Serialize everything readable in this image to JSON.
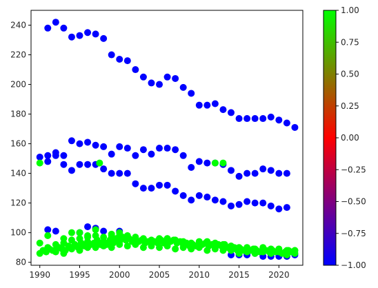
{
  "chart_data": {
    "type": "scatter",
    "title": "",
    "xlabel": "",
    "ylabel": "",
    "xlim": [
      1988.9,
      2023.0
    ],
    "ylim": [
      78,
      250
    ],
    "x_ticks": [
      1990,
      1995,
      2000,
      2005,
      2010,
      2015,
      2020
    ],
    "y_ticks": [
      80,
      100,
      120,
      140,
      160,
      180,
      200,
      220,
      240
    ],
    "grid": false,
    "colormap": {
      "name": "brg",
      "vmin": -1.0,
      "vmax": 1.0,
      "ticks": [
        -1.0,
        -0.75,
        -0.5,
        -0.25,
        0.0,
        0.25,
        0.5,
        0.75,
        1.0
      ],
      "tick_labels": [
        "−1.00",
        "−0.75",
        "−0.50",
        "−0.25",
        "0.00",
        "0.25",
        "0.50",
        "0.75",
        "1.00"
      ],
      "colors": [
        "#0000ff",
        "#ff0000",
        "#00ff00"
      ]
    },
    "series": [
      {
        "color_value": -1,
        "points": [
          [
            1991,
            238
          ],
          [
            1992,
            242
          ],
          [
            1993,
            238
          ],
          [
            1994,
            232
          ],
          [
            1995,
            233
          ],
          [
            1996,
            235
          ],
          [
            1997,
            234
          ],
          [
            1998,
            231
          ],
          [
            1999,
            220
          ],
          [
            2000,
            217
          ],
          [
            2001,
            216
          ],
          [
            2002,
            210
          ],
          [
            2003,
            205
          ],
          [
            2004,
            201
          ],
          [
            2005,
            200
          ],
          [
            2006,
            205
          ],
          [
            2007,
            204
          ],
          [
            2008,
            198
          ],
          [
            2009,
            194
          ],
          [
            2010,
            186
          ],
          [
            2011,
            186
          ],
          [
            2012,
            187
          ],
          [
            2013,
            183
          ],
          [
            2014,
            181
          ],
          [
            2015,
            177
          ],
          [
            2016,
            177
          ],
          [
            2017,
            177
          ],
          [
            2018,
            177
          ],
          [
            2019,
            178
          ],
          [
            2020,
            176
          ],
          [
            2021,
            174
          ],
          [
            2022,
            171
          ],
          [
            1990,
            151
          ],
          [
            1991,
            152
          ],
          [
            1992,
            154
          ],
          [
            1993,
            152
          ],
          [
            1994,
            162
          ],
          [
            1995,
            160
          ],
          [
            1996,
            161
          ],
          [
            1997,
            159
          ],
          [
            1998,
            158
          ],
          [
            1999,
            153
          ],
          [
            2000,
            158
          ],
          [
            2001,
            157
          ],
          [
            2002,
            152
          ],
          [
            2003,
            156
          ],
          [
            2004,
            153
          ],
          [
            2005,
            157
          ],
          [
            2006,
            157
          ],
          [
            2007,
            156
          ],
          [
            2008,
            152
          ],
          [
            2009,
            144
          ],
          [
            2010,
            148
          ],
          [
            2011,
            147
          ],
          [
            2012,
            147
          ],
          [
            2013,
            146
          ],
          [
            2014,
            142
          ],
          [
            2015,
            138
          ],
          [
            2016,
            140
          ],
          [
            2017,
            140
          ],
          [
            2018,
            143
          ],
          [
            2019,
            142
          ],
          [
            2020,
            140
          ],
          [
            2021,
            140
          ],
          [
            1991,
            148
          ],
          [
            1992,
            152
          ],
          [
            1993,
            146
          ],
          [
            1994,
            142
          ],
          [
            1995,
            146
          ],
          [
            1996,
            146
          ],
          [
            1997,
            146
          ],
          [
            1998,
            143
          ],
          [
            1999,
            140
          ],
          [
            2000,
            140
          ],
          [
            2001,
            140
          ],
          [
            2002,
            133
          ],
          [
            2003,
            130
          ],
          [
            2004,
            130
          ],
          [
            2005,
            132
          ],
          [
            2006,
            132
          ],
          [
            2007,
            128
          ],
          [
            2008,
            125
          ],
          [
            2009,
            122
          ],
          [
            2010,
            125
          ],
          [
            2011,
            124
          ],
          [
            2012,
            122
          ],
          [
            2013,
            121
          ],
          [
            2014,
            118
          ],
          [
            2015,
            119
          ],
          [
            2016,
            121
          ],
          [
            2017,
            120
          ],
          [
            2018,
            120
          ],
          [
            2019,
            118
          ],
          [
            2020,
            116
          ],
          [
            2021,
            117
          ],
          [
            1991,
            102
          ],
          [
            1992,
            101
          ],
          [
            1995,
            100
          ],
          [
            1996,
            104
          ],
          [
            1997,
            103
          ],
          [
            1998,
            101
          ],
          [
            2000,
            101
          ],
          [
            2014,
            85
          ],
          [
            2015,
            85
          ],
          [
            2016,
            85
          ],
          [
            2017,
            86
          ],
          [
            2018,
            84
          ],
          [
            2019,
            84
          ],
          [
            2020,
            84
          ],
          [
            2021,
            84
          ],
          [
            2022,
            85
          ]
        ]
      },
      {
        "color_value": 1,
        "points": [
          [
            1990,
            147
          ],
          [
            1997.5,
            147
          ],
          [
            2012,
            147
          ],
          [
            2013,
            147
          ],
          [
            1990,
            93
          ],
          [
            1991,
            98
          ],
          [
            1993,
            96
          ],
          [
            1994,
            100
          ],
          [
            1995,
            100
          ],
          [
            1996,
            98
          ],
          [
            1997,
            102
          ],
          [
            1999,
            98
          ],
          [
            2000,
            100
          ],
          [
            1990,
            86
          ],
          [
            1990.4,
            88
          ],
          [
            1990.8,
            87
          ],
          [
            1991.2,
            89
          ],
          [
            1991.6,
            88
          ],
          [
            1992,
            87
          ],
          [
            1992.4,
            90
          ],
          [
            1992.8,
            89
          ],
          [
            1993.2,
            88
          ],
          [
            1993.6,
            91
          ],
          [
            1994,
            89
          ],
          [
            1994.4,
            92
          ],
          [
            1994.8,
            90
          ],
          [
            1995.2,
            93
          ],
          [
            1995.6,
            91
          ],
          [
            1996,
            94
          ],
          [
            1996.4,
            92
          ],
          [
            1996.8,
            93
          ],
          [
            1997.2,
            95
          ],
          [
            1997.6,
            92
          ],
          [
            1998,
            94
          ],
          [
            1998.4,
            92
          ],
          [
            1998.8,
            95
          ],
          [
            1999.2,
            93
          ],
          [
            1999.6,
            96
          ],
          [
            2000,
            94
          ],
          [
            2000.4,
            97
          ],
          [
            2000.8,
            95
          ],
          [
            2001.2,
            96
          ],
          [
            2001.6,
            94
          ],
          [
            2002,
            96
          ],
          [
            2002.4,
            94
          ],
          [
            2002.8,
            95
          ],
          [
            2003.2,
            93
          ],
          [
            2003.6,
            94
          ],
          [
            2004,
            92
          ],
          [
            2004.4,
            94
          ],
          [
            2004.8,
            93
          ],
          [
            2005.2,
            95
          ],
          [
            2005.6,
            93
          ],
          [
            2006,
            96
          ],
          [
            2006.4,
            94
          ],
          [
            2006.8,
            95
          ],
          [
            2007.2,
            93
          ],
          [
            2007.6,
            94
          ],
          [
            2008,
            92
          ],
          [
            2008.4,
            93
          ],
          [
            2008.8,
            91
          ],
          [
            2009.2,
            92
          ],
          [
            2009.6,
            91
          ],
          [
            2010,
            93
          ],
          [
            2010.4,
            92
          ],
          [
            2010.8,
            93
          ],
          [
            2011.2,
            91
          ],
          [
            2011.6,
            92
          ],
          [
            2012,
            90
          ],
          [
            2012.4,
            92
          ],
          [
            2012.8,
            91
          ],
          [
            2013.2,
            92
          ],
          [
            2013.6,
            90
          ],
          [
            2014,
            89
          ],
          [
            2014.4,
            90
          ],
          [
            2014.8,
            88
          ],
          [
            2015.2,
            89
          ],
          [
            2015.6,
            88
          ],
          [
            2016,
            89
          ],
          [
            2016.4,
            88
          ],
          [
            2016.8,
            89
          ],
          [
            2017.2,
            88
          ],
          [
            2017.6,
            87
          ],
          [
            2018,
            89
          ],
          [
            2018.4,
            88
          ],
          [
            2018.8,
            87
          ],
          [
            2019.2,
            88
          ],
          [
            2019.6,
            87
          ],
          [
            2020,
            88
          ],
          [
            2020.4,
            86
          ],
          [
            2020.8,
            87
          ],
          [
            2021.2,
            88
          ],
          [
            2021.6,
            87
          ],
          [
            2022,
            88
          ],
          [
            1991,
            90
          ],
          [
            1992,
            92
          ],
          [
            1993,
            93
          ],
          [
            1994,
            95
          ],
          [
            1995,
            96
          ],
          [
            1996,
            97
          ],
          [
            1997,
            98
          ],
          [
            1998,
            97
          ],
          [
            1999,
            99
          ],
          [
            2000,
            98
          ],
          [
            2001,
            98
          ],
          [
            2002,
            97
          ],
          [
            2003,
            96
          ],
          [
            2004,
            95
          ],
          [
            2005,
            96
          ],
          [
            2006,
            96
          ],
          [
            2007,
            95
          ],
          [
            2008,
            94
          ],
          [
            2009,
            93
          ],
          [
            2010,
            94
          ],
          [
            2011,
            94
          ],
          [
            2012,
            93
          ],
          [
            2013,
            92
          ],
          [
            2014,
            91
          ],
          [
            2015,
            90
          ],
          [
            2016,
            90
          ],
          [
            2017,
            89
          ],
          [
            2018,
            90
          ],
          [
            2019,
            89
          ],
          [
            2020,
            89
          ],
          [
            2021,
            88
          ],
          [
            2022,
            88
          ],
          [
            1992,
            88
          ],
          [
            1994,
            90
          ],
          [
            1996,
            90
          ],
          [
            1998,
            91
          ],
          [
            2000,
            92
          ],
          [
            2002,
            92
          ],
          [
            2004,
            91
          ],
          [
            2006,
            91
          ],
          [
            2008,
            90
          ],
          [
            2010,
            90
          ],
          [
            2012,
            89
          ],
          [
            2014,
            88
          ],
          [
            2016,
            87
          ],
          [
            2018,
            87
          ],
          [
            2020,
            87
          ],
          [
            2022,
            86
          ],
          [
            1993,
            86
          ],
          [
            1995,
            88
          ],
          [
            1997,
            90
          ],
          [
            1999,
            90
          ],
          [
            2001,
            91
          ],
          [
            2003,
            90
          ],
          [
            2005,
            90
          ],
          [
            2007,
            89
          ],
          [
            2009,
            89
          ],
          [
            2011,
            88
          ],
          [
            2013,
            88
          ],
          [
            2015,
            86
          ],
          [
            2017,
            86
          ],
          [
            2019,
            86
          ],
          [
            2021,
            85
          ]
        ]
      }
    ]
  }
}
